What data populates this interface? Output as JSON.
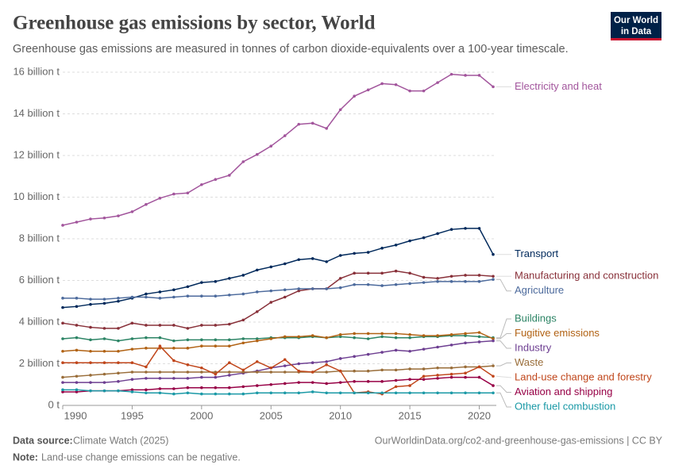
{
  "chart_data": {
    "type": "line",
    "title": "Greenhouse gas emissions by sector, World",
    "subtitle": "Greenhouse gas emissions are measured in tonnes of carbon dioxide-equivalents over a 100-year timescale.",
    "x": [
      1990,
      1991,
      1992,
      1993,
      1994,
      1995,
      1996,
      1997,
      1998,
      1999,
      2000,
      2001,
      2002,
      2003,
      2004,
      2005,
      2006,
      2007,
      2008,
      2009,
      2010,
      2011,
      2012,
      2013,
      2014,
      2015,
      2016,
      2017,
      2018,
      2019,
      2020,
      2021
    ],
    "xlim": [
      1990,
      2021
    ],
    "xticks": [
      1990,
      1995,
      2000,
      2005,
      2010,
      2015,
      2020
    ],
    "ylim": [
      0,
      16
    ],
    "yticks": [
      {
        "value": 0,
        "label": "0 t"
      },
      {
        "value": 2,
        "label": "2 billion t"
      },
      {
        "value": 4,
        "label": "4 billion t"
      },
      {
        "value": 6,
        "label": "6 billion t"
      },
      {
        "value": 8,
        "label": "8 billion t"
      },
      {
        "value": 10,
        "label": "10 billion t"
      },
      {
        "value": 12,
        "label": "12 billion t"
      },
      {
        "value": 14,
        "label": "14 billion t"
      },
      {
        "value": 16,
        "label": "16 billion t"
      }
    ],
    "grid": true,
    "series": [
      {
        "name": "Electricity and heat",
        "color": "#a2559c",
        "values": [
          8.65,
          8.8,
          8.95,
          9.0,
          9.1,
          9.3,
          9.65,
          9.95,
          10.15,
          10.2,
          10.6,
          10.85,
          11.05,
          11.7,
          12.05,
          12.45,
          12.95,
          13.5,
          13.55,
          13.3,
          14.2,
          14.85,
          15.15,
          15.45,
          15.4,
          15.1,
          15.1,
          15.5,
          15.9,
          15.85,
          15.85,
          15.3
        ]
      },
      {
        "name": "Transport",
        "color": "#00295b",
        "values": [
          4.7,
          4.75,
          4.85,
          4.9,
          5.0,
          5.15,
          5.35,
          5.45,
          5.55,
          5.7,
          5.9,
          5.95,
          6.1,
          6.25,
          6.5,
          6.65,
          6.8,
          7.0,
          7.05,
          6.9,
          7.2,
          7.3,
          7.35,
          7.55,
          7.7,
          7.9,
          8.05,
          8.25,
          8.45,
          8.5,
          8.5,
          7.25
        ]
      },
      {
        "name": "Manufacturing and construction",
        "color": "#883039",
        "values": [
          3.95,
          3.85,
          3.75,
          3.7,
          3.7,
          3.95,
          3.85,
          3.85,
          3.85,
          3.7,
          3.85,
          3.85,
          3.9,
          4.1,
          4.5,
          4.95,
          5.2,
          5.5,
          5.6,
          5.6,
          6.1,
          6.35,
          6.35,
          6.35,
          6.45,
          6.35,
          6.15,
          6.1,
          6.2,
          6.25,
          6.25,
          6.2
        ]
      },
      {
        "name": "Agriculture",
        "color": "#4c6a9c",
        "values": [
          5.15,
          5.15,
          5.1,
          5.1,
          5.15,
          5.2,
          5.2,
          5.15,
          5.2,
          5.25,
          5.25,
          5.25,
          5.3,
          5.35,
          5.45,
          5.5,
          5.55,
          5.6,
          5.6,
          5.6,
          5.65,
          5.8,
          5.8,
          5.75,
          5.8,
          5.85,
          5.9,
          5.95,
          5.95,
          5.95,
          5.95,
          6.05
        ]
      },
      {
        "name": "Buildings",
        "color": "#2c8465",
        "values": [
          3.2,
          3.25,
          3.15,
          3.2,
          3.1,
          3.2,
          3.25,
          3.25,
          3.1,
          3.15,
          3.15,
          3.15,
          3.15,
          3.2,
          3.2,
          3.25,
          3.25,
          3.25,
          3.3,
          3.25,
          3.3,
          3.25,
          3.2,
          3.3,
          3.25,
          3.25,
          3.3,
          3.3,
          3.35,
          3.35,
          3.3,
          3.25
        ]
      },
      {
        "name": "Fugitive emissions",
        "color": "#b16214",
        "values": [
          2.6,
          2.65,
          2.6,
          2.6,
          2.6,
          2.7,
          2.75,
          2.75,
          2.75,
          2.75,
          2.85,
          2.85,
          2.85,
          3.0,
          3.1,
          3.2,
          3.3,
          3.3,
          3.35,
          3.25,
          3.4,
          3.45,
          3.45,
          3.45,
          3.45,
          3.4,
          3.35,
          3.35,
          3.4,
          3.45,
          3.5,
          3.2
        ]
      },
      {
        "name": "Industry",
        "color": "#6d3e91",
        "values": [
          1.1,
          1.1,
          1.1,
          1.1,
          1.15,
          1.25,
          1.3,
          1.3,
          1.3,
          1.3,
          1.35,
          1.35,
          1.45,
          1.55,
          1.65,
          1.8,
          1.9,
          2.0,
          2.05,
          2.1,
          2.25,
          2.35,
          2.45,
          2.55,
          2.65,
          2.6,
          2.7,
          2.8,
          2.9,
          3.0,
          3.05,
          3.1
        ]
      },
      {
        "name": "Waste",
        "color": "#996d39",
        "values": [
          1.35,
          1.4,
          1.45,
          1.5,
          1.55,
          1.6,
          1.6,
          1.6,
          1.6,
          1.6,
          1.6,
          1.6,
          1.6,
          1.6,
          1.6,
          1.6,
          1.6,
          1.6,
          1.6,
          1.6,
          1.65,
          1.65,
          1.65,
          1.7,
          1.7,
          1.75,
          1.75,
          1.8,
          1.8,
          1.85,
          1.85,
          1.9
        ]
      },
      {
        "name": "Land-use change and forestry",
        "color": "#c0461b",
        "values": [
          2.05,
          2.05,
          2.05,
          2.05,
          2.05,
          2.05,
          1.85,
          2.85,
          2.15,
          1.95,
          1.8,
          1.5,
          2.05,
          1.7,
          2.1,
          1.8,
          2.2,
          1.65,
          1.6,
          1.95,
          1.65,
          0.6,
          0.65,
          0.55,
          0.9,
          0.95,
          1.4,
          1.45,
          1.5,
          1.55,
          1.85,
          1.4
        ]
      },
      {
        "name": "Aviation and shipping",
        "color": "#970046",
        "values": [
          0.65,
          0.65,
          0.7,
          0.7,
          0.7,
          0.75,
          0.75,
          0.8,
          0.8,
          0.85,
          0.85,
          0.85,
          0.85,
          0.9,
          0.95,
          1.0,
          1.05,
          1.1,
          1.1,
          1.05,
          1.1,
          1.15,
          1.15,
          1.15,
          1.2,
          1.25,
          1.25,
          1.3,
          1.35,
          1.35,
          1.35,
          0.95
        ]
      },
      {
        "name": "Other fuel combustion",
        "color": "#1a99a6",
        "values": [
          0.75,
          0.75,
          0.7,
          0.7,
          0.7,
          0.65,
          0.6,
          0.6,
          0.55,
          0.6,
          0.55,
          0.55,
          0.55,
          0.55,
          0.6,
          0.6,
          0.6,
          0.6,
          0.65,
          0.6,
          0.6,
          0.6,
          0.6,
          0.6,
          0.6,
          0.6,
          0.6,
          0.6,
          0.6,
          0.6,
          0.6,
          0.6
        ]
      }
    ],
    "source_label": "Data source:",
    "source": "Climate Watch (2025)",
    "credit": "OurWorldinData.org/co2-and-greenhouse-gas-emissions | CC BY",
    "note_label": "Note:",
    "note": "Land-use change emissions can be negative."
  },
  "logo": {
    "line1": "Our World",
    "line2": "in Data"
  }
}
